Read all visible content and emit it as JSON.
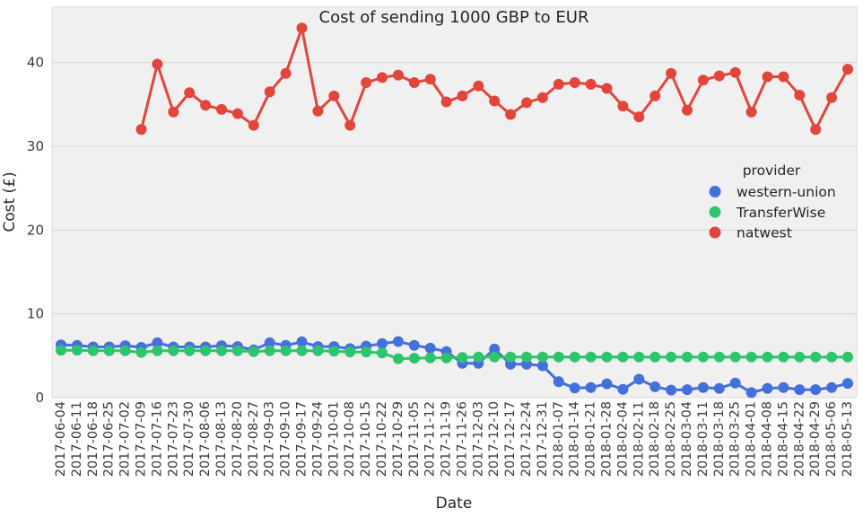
{
  "figure": {
    "title": "Cost of sending 1000 GBP to EUR",
    "xlabel": "Date",
    "ylabel": "Cost (£)"
  },
  "legend": {
    "title": "provider"
  },
  "chart_data": {
    "type": "line",
    "title": "Cost of sending 1000 GBP to EUR",
    "xlabel": "Date",
    "ylabel": "Cost (£)",
    "grid": true,
    "legend_position": "center right",
    "ylim": [
      0,
      46.6
    ],
    "y_ticks": [
      0,
      10,
      20,
      30,
      40
    ],
    "y_tick_labels": [
      "0",
      "10",
      "20",
      "30",
      "40"
    ],
    "x_tick_labels": [
      "2017-06-04",
      "2017-06-11",
      "2017-06-18",
      "2017-06-25",
      "2017-07-02",
      "2017-07-09",
      "2017-07-16",
      "2017-07-23",
      "2017-07-30",
      "2017-08-06",
      "2017-08-13",
      "2017-08-20",
      "2017-08-27",
      "2017-09-03",
      "2017-09-10",
      "2017-09-17",
      "2017-09-24",
      "2017-10-01",
      "2017-10-08",
      "2017-10-15",
      "2017-10-22",
      "2017-10-29",
      "2017-11-05",
      "2017-11-12",
      "2017-11-19",
      "2017-11-26",
      "2017-12-03",
      "2017-12-10",
      "2017-12-17",
      "2017-12-24",
      "2017-12-31",
      "2018-01-07",
      "2018-01-14",
      "2018-01-21",
      "2018-01-28",
      "2018-02-04",
      "2018-02-11",
      "2018-02-18",
      "2018-02-25",
      "2018-03-04",
      "2018-03-11",
      "2018-03-18",
      "2018-03-25",
      "2018-04-01",
      "2018-04-08",
      "2018-04-15",
      "2018-04-22",
      "2018-04-29",
      "2018-05-06",
      "2018-05-13"
    ],
    "series": [
      {
        "name": "western-union",
        "color": "#4470dc",
        "values": [
          6.3,
          6.25,
          6.05,
          6.05,
          6.2,
          6.0,
          6.55,
          6.05,
          6.05,
          6.05,
          6.2,
          6.1,
          5.7,
          6.55,
          6.25,
          6.65,
          6.1,
          6.1,
          5.85,
          6.15,
          6.45,
          6.7,
          6.25,
          5.9,
          5.5,
          4.1,
          4.1,
          5.8,
          4.0,
          4.0,
          3.8,
          1.9,
          1.15,
          1.2,
          1.65,
          1.0,
          2.2,
          1.3,
          0.9,
          0.95,
          1.2,
          1.1,
          1.75,
          0.6,
          1.1,
          1.2,
          0.95,
          0.95,
          1.2,
          1.7
        ]
      },
      {
        "name": "TransferWise",
        "color": "#2ec46d",
        "values": [
          5.65,
          5.65,
          5.6,
          5.6,
          5.6,
          5.4,
          5.6,
          5.6,
          5.6,
          5.6,
          5.6,
          5.6,
          5.5,
          5.6,
          5.6,
          5.6,
          5.6,
          5.55,
          5.45,
          5.45,
          5.35,
          4.65,
          4.7,
          4.75,
          4.75,
          4.8,
          4.85,
          4.85,
          4.85,
          4.85,
          4.85,
          4.85,
          4.85,
          4.85,
          4.85,
          4.85,
          4.85,
          4.85,
          4.85,
          4.85,
          4.85,
          4.85,
          4.85,
          4.85,
          4.85,
          4.85,
          4.85,
          4.85,
          4.85,
          4.85
        ]
      },
      {
        "name": "natwest",
        "color": "#e2453c",
        "values": [
          null,
          null,
          null,
          null,
          null,
          32.0,
          39.8,
          34.1,
          36.4,
          34.9,
          34.4,
          33.9,
          32.5,
          36.5,
          38.7,
          44.1,
          34.2,
          36.0,
          32.5,
          37.6,
          38.2,
          38.5,
          37.6,
          38.0,
          35.3,
          36.0,
          37.2,
          35.4,
          33.8,
          35.2,
          35.8,
          37.4,
          37.6,
          37.4,
          36.9,
          34.8,
          33.5,
          36.0,
          38.7,
          34.3,
          37.9,
          38.4,
          38.8,
          34.1,
          38.3,
          38.3,
          36.1,
          32.0,
          35.8,
          39.2
        ]
      }
    ]
  }
}
